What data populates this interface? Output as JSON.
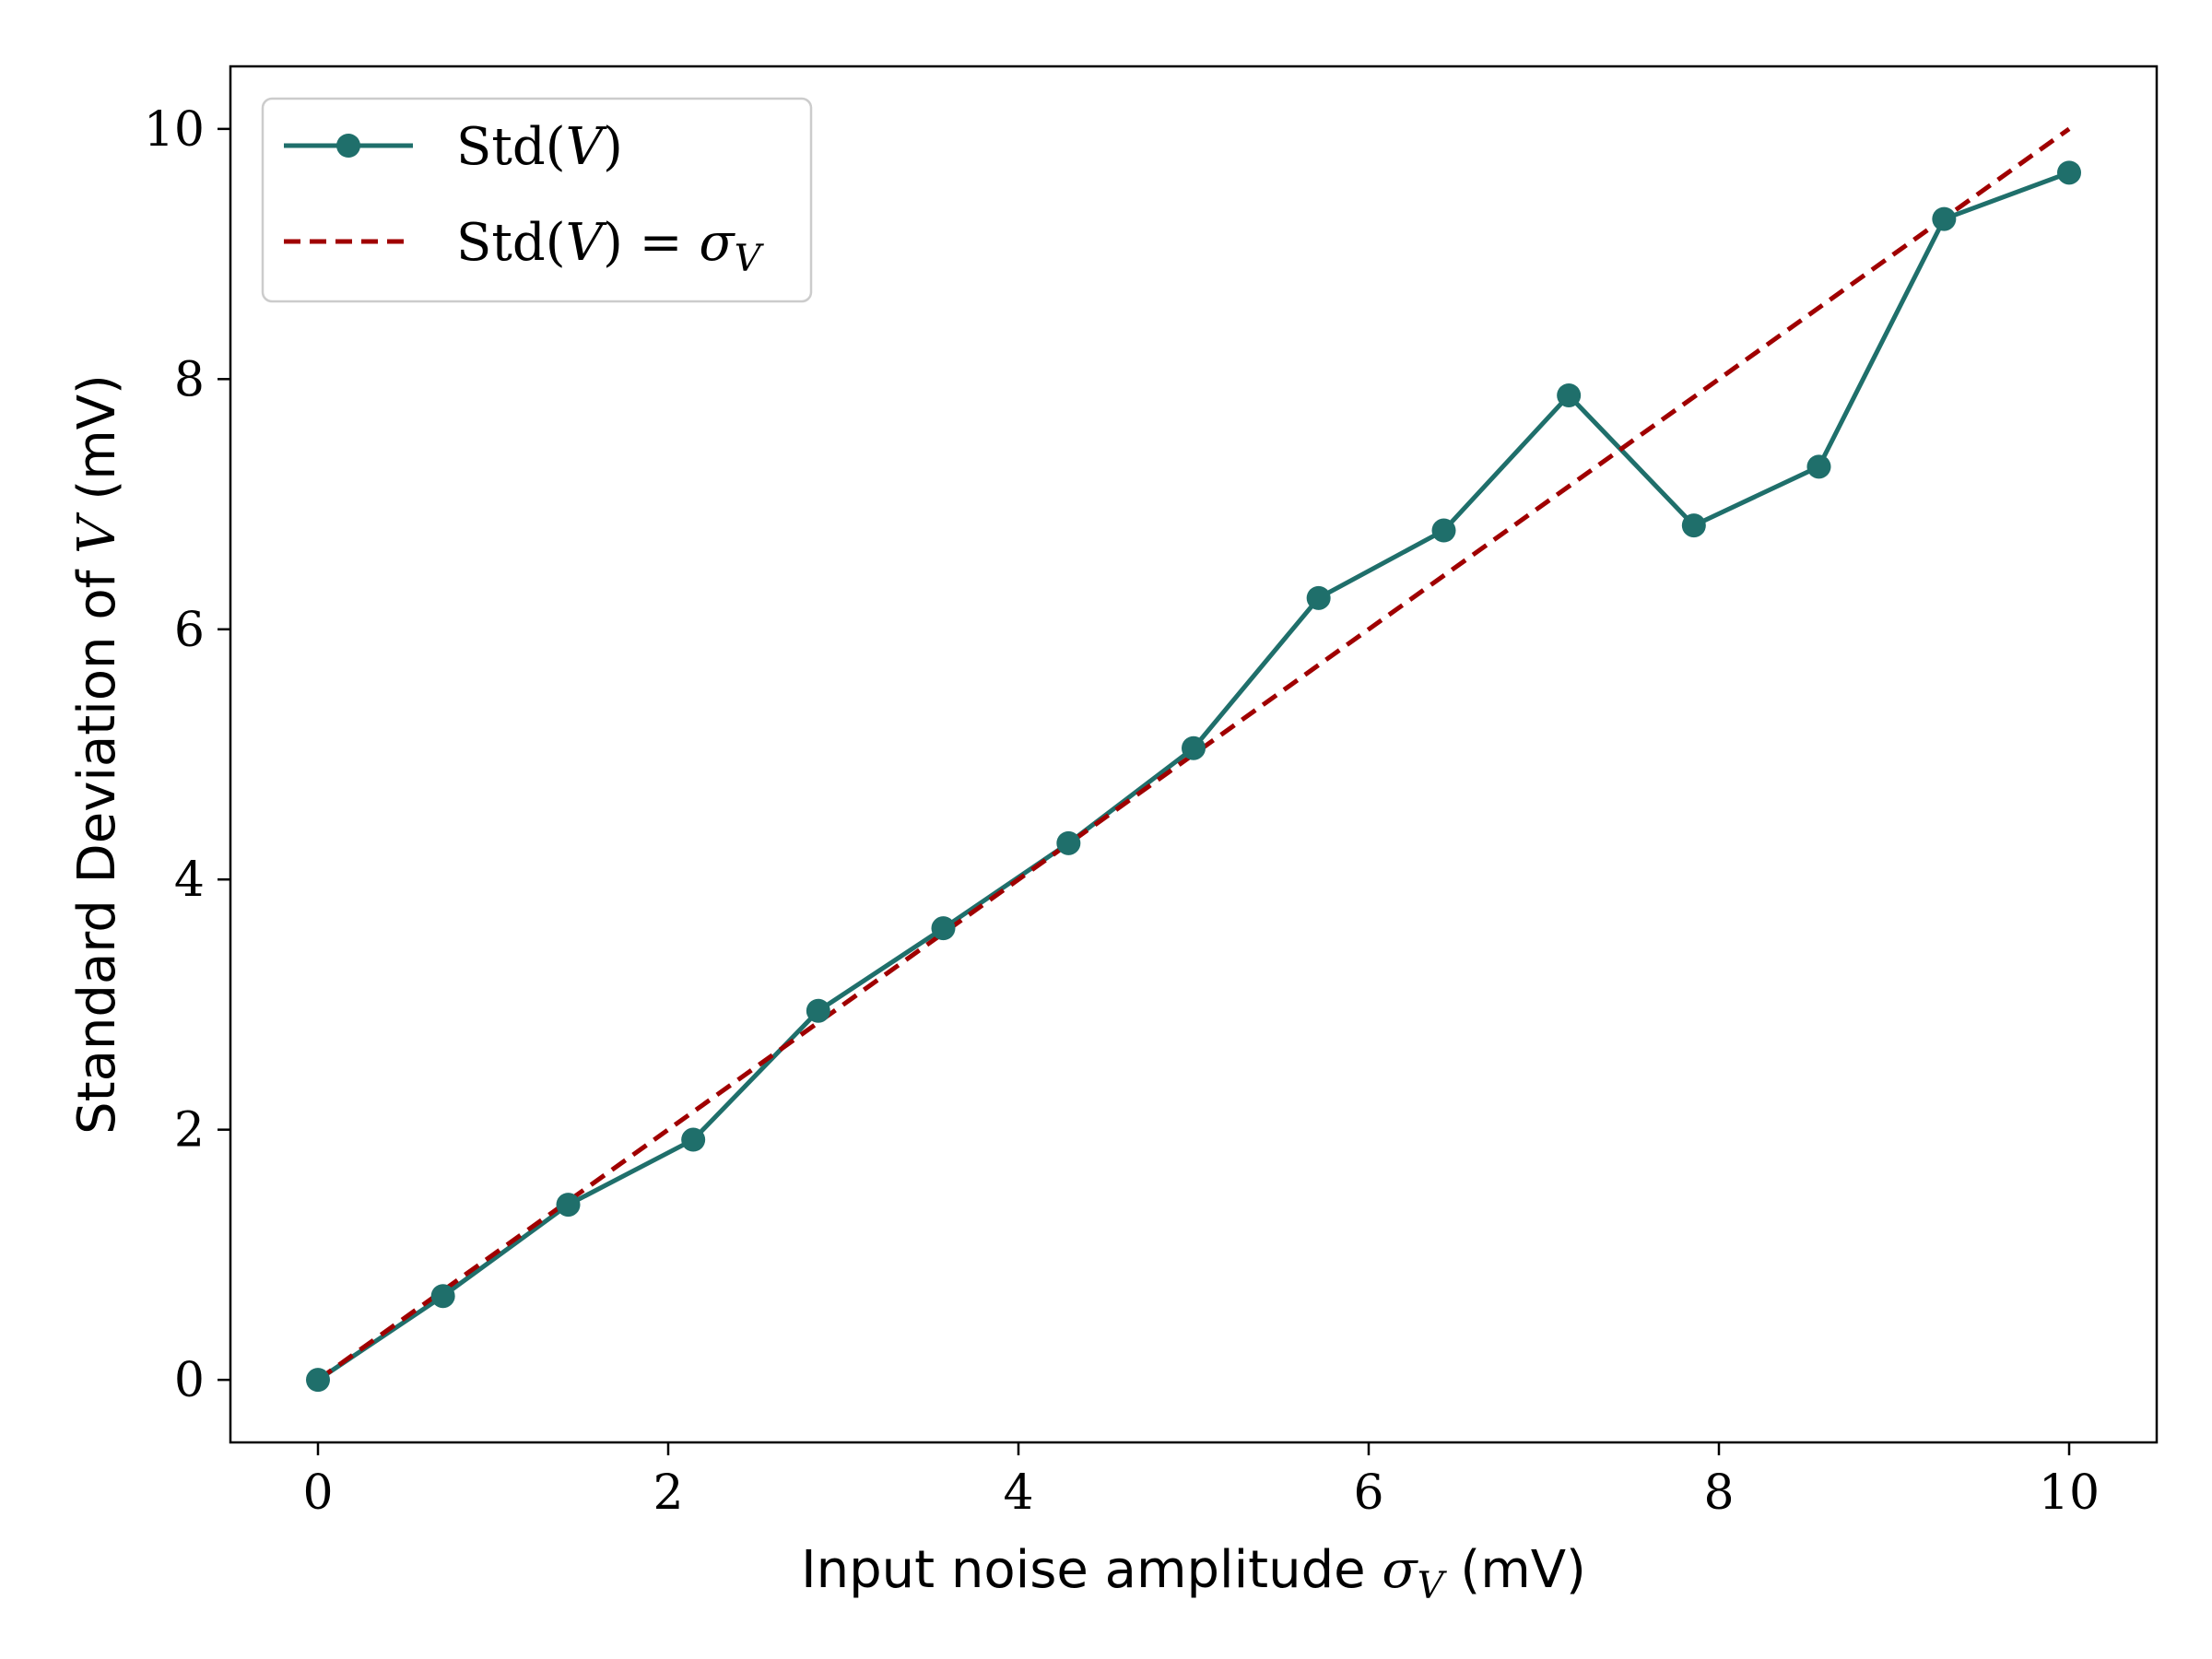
{
  "chart_data": {
    "type": "line",
    "x_ticks": [
      "0",
      "2",
      "4",
      "6",
      "8",
      "10"
    ],
    "y_ticks": [
      "0",
      "2",
      "4",
      "6",
      "8",
      "10"
    ],
    "xlim": [
      -0.5,
      10.5
    ],
    "ylim": [
      -0.5,
      10.5
    ],
    "xlabel": {
      "pre": "Input noise amplitude ",
      "sym": "σ",
      "sub": "V",
      "post": " (mV)"
    },
    "ylabel": {
      "pre": "Standard Deviation of ",
      "sym": "V",
      "post": " (mV)"
    },
    "legend_position": "upper-left",
    "series": [
      {
        "name": {
          "pre": "Std(",
          "sym": "V",
          "post": ")"
        },
        "style": "solid-marker",
        "color": "#1f6f6b",
        "x": [
          0,
          0.714,
          1.429,
          2.143,
          2.857,
          3.571,
          4.286,
          5.0,
          5.714,
          6.429,
          7.143,
          7.857,
          8.571,
          9.286,
          10.0
        ],
        "y": [
          0,
          0.67,
          1.4,
          1.92,
          2.95,
          3.61,
          4.29,
          5.05,
          6.25,
          6.79,
          7.87,
          6.83,
          7.3,
          9.28,
          9.65
        ]
      },
      {
        "name": {
          "pre": "Std(",
          "sym": "V",
          "post": ") = ",
          "sym2": "σ",
          "sub2": "V"
        },
        "style": "dashed",
        "color": "#a00000",
        "x": [
          0,
          10
        ],
        "y": [
          0,
          10
        ]
      }
    ]
  }
}
